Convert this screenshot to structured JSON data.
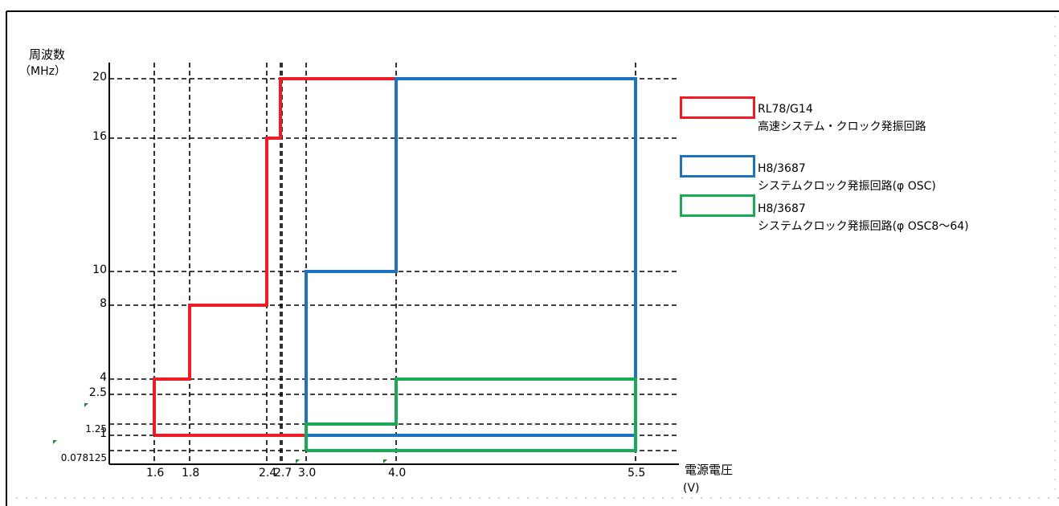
{
  "chart_data": {
    "type": "line",
    "ylabel": "周波数",
    "yunit": "（MHz）",
    "xlabel": "電源電圧",
    "xunit": "(V)",
    "x_ticks": [
      {
        "label": "1.6",
        "value": 1.6
      },
      {
        "label": "1.8",
        "value": 1.8
      },
      {
        "label": "2.4",
        "value": 2.4
      },
      {
        "label": "2.7",
        "value": 2.7
      },
      {
        "label": "3.0",
        "value": 3.0
      },
      {
        "label": "4.0",
        "value": 4.0
      },
      {
        "label": "5.5",
        "value": 5.5
      }
    ],
    "y_ticks": [
      {
        "label": "20",
        "value": 20
      },
      {
        "label": "16",
        "value": 16
      },
      {
        "label": "10",
        "value": 10
      },
      {
        "label": "8",
        "value": 8
      },
      {
        "label": "4",
        "value": 4
      },
      {
        "label": "2.5",
        "value": 2.5
      },
      {
        "label": "1.25",
        "value": 1.25
      },
      {
        "label": "1",
        "value": 1
      },
      {
        "label": "0.078125",
        "value": 0.078125
      }
    ],
    "series": [
      {
        "name": "RL78/G14",
        "name_line2": "高速システム・クロック発振回路",
        "color": "#ee1c25",
        "points": [
          [
            1.6,
            1
          ],
          [
            1.6,
            4
          ],
          [
            1.8,
            4
          ],
          [
            1.8,
            8
          ],
          [
            2.4,
            8
          ],
          [
            2.4,
            16
          ],
          [
            2.6,
            16
          ],
          [
            2.6,
            20
          ],
          [
            5.5,
            20
          ],
          [
            5.5,
            1
          ],
          [
            1.6,
            1
          ]
        ]
      },
      {
        "name": "H8/3687",
        "name_line2": "システムクロック発振回路(φ OSC)",
        "color": "#1e73be",
        "points": [
          [
            3.0,
            1
          ],
          [
            3.0,
            10
          ],
          [
            4.0,
            10
          ],
          [
            4.0,
            20
          ],
          [
            5.5,
            20
          ],
          [
            5.5,
            1
          ],
          [
            3.0,
            1
          ]
        ]
      },
      {
        "name": "H8/3687",
        "name_line2": "システムクロック発振回路(φ OSC8～64)",
        "color": "#1aaa55",
        "points": [
          [
            3.0,
            0.078125
          ],
          [
            3.0,
            1.25
          ],
          [
            4.0,
            1.25
          ],
          [
            4.0,
            4
          ],
          [
            5.5,
            4
          ],
          [
            5.5,
            0.078125
          ],
          [
            3.0,
            0.078125
          ]
        ]
      }
    ],
    "grid": true,
    "legend_position": "right"
  }
}
